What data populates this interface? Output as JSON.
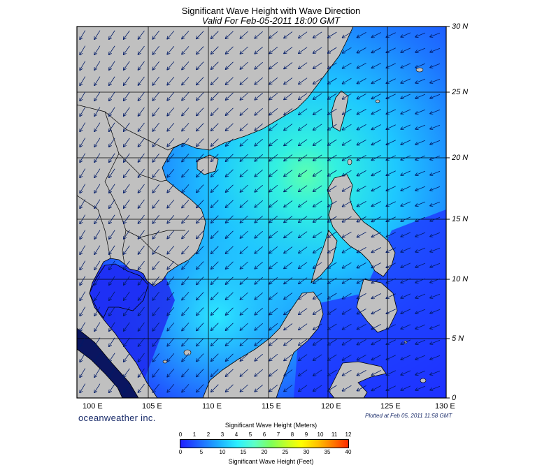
{
  "title": "Significant Wave Height with Wave Direction",
  "subtitle": "Valid For Feb-05-2011 18:00 GMT",
  "lat_labels": [
    "30 N",
    "25 N",
    "20 N",
    "15 N",
    "10 N",
    "5 N",
    "0"
  ],
  "lon_labels": [
    "100 E",
    "105 E",
    "110 E",
    "115 E",
    "120 E",
    "125 E",
    "130 E"
  ],
  "brand": "oceanweather inc.",
  "plotted": "Plotted at Feb 05, 2011 11:58 GMT",
  "legend": {
    "title_meters": "Significant Wave Height (Meters)",
    "title_feet": "Significant Wave Height (Feet)",
    "meters_ticks": [
      "0",
      "1",
      "2",
      "3",
      "4",
      "5",
      "6",
      "7",
      "8",
      "9",
      "10",
      "11",
      "12"
    ],
    "feet_ticks": [
      "0",
      "5",
      "10",
      "15",
      "20",
      "25",
      "30",
      "35",
      "40"
    ]
  },
  "colors": {
    "land": "#c0c0c0",
    "ocean_low": "#1f2fff",
    "ocean_mid": "#1ea8ff",
    "ocean_high": "#36f0d8",
    "peak": "#66ff99",
    "arrows": "#001a66",
    "grid": "#000000"
  },
  "wave_direction": "northeast swell toward southwest"
}
